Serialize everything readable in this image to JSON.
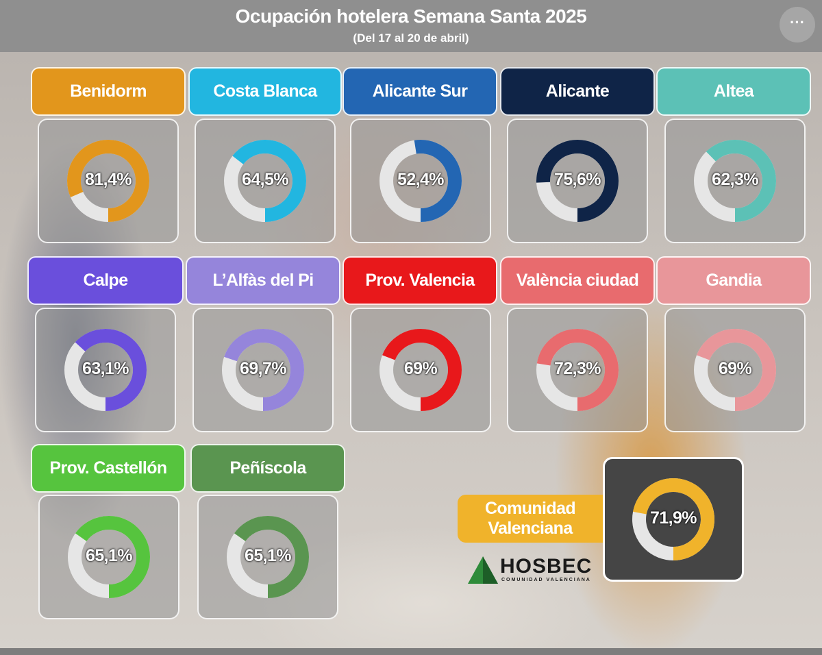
{
  "header": {
    "title": "Ocupación hotelera Semana Santa 2025",
    "subtitle": "(Del 17 al 20 de abril)",
    "more_label": "···"
  },
  "chart_data": {
    "type": "pie",
    "variant": "donut",
    "unit": "%",
    "remainder_color": "#e6e6e6",
    "items": [
      {
        "name": "Benidorm",
        "value": 81.4,
        "label": "81,4%",
        "color": "#e2961c"
      },
      {
        "name": "Costa Blanca",
        "value": 64.5,
        "label": "64,5%",
        "color": "#22b6e0"
      },
      {
        "name": "Alicante Sur",
        "value": 52.4,
        "label": "52,4%",
        "color": "#2366b3"
      },
      {
        "name": "Alicante",
        "value": 75.6,
        "label": "75,6%",
        "color": "#0f2447"
      },
      {
        "name": "Altea",
        "value": 62.3,
        "label": "62,3%",
        "color": "#5cc1b6"
      },
      {
        "name": "Calpe",
        "value": 63.1,
        "label": "63,1%",
        "color": "#6a4fdc"
      },
      {
        "name": "L’Alfàs del Pi",
        "value": 69.7,
        "label": "69,7%",
        "color": "#9585db"
      },
      {
        "name": "Prov. Valencia",
        "value": 69,
        "label": "69%",
        "color": "#e8181b"
      },
      {
        "name": "València ciudad",
        "value": 72.3,
        "label": "72,3%",
        "color": "#e86b6e"
      },
      {
        "name": "Gandia",
        "value": 69,
        "label": "69%",
        "color": "#e8969a"
      },
      {
        "name": "Prov. Castellón",
        "value": 65.1,
        "label": "65,1%",
        "color": "#56c43e"
      },
      {
        "name": "Peñíscola",
        "value": 65.1,
        "label": "65,1%",
        "color": "#5a9550"
      }
    ],
    "total": {
      "name": "Comunidad Valenciana",
      "line1": "Comunidad",
      "line2": "Valenciana",
      "value": 71.9,
      "label": "71,9%",
      "color": "#f0b32b"
    }
  },
  "logo": {
    "text": "HOSBEC",
    "subtext": "COMUNIDAD VALENCIANA"
  }
}
